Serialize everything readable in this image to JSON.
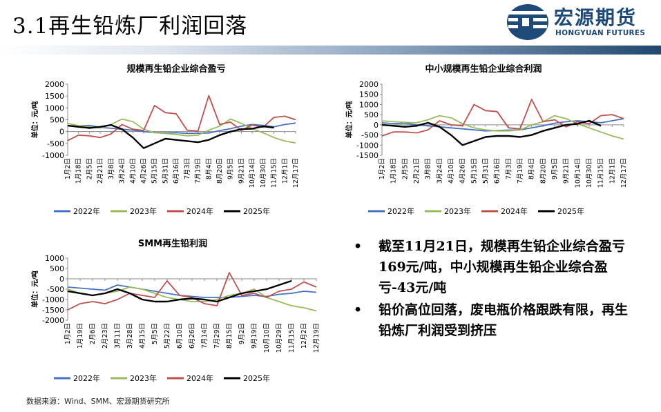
{
  "page": {
    "title": "3.1再生铅炼厂利润回落",
    "logo_name": "宏源期货",
    "logo_sub": "HONGYUAN FUTURES",
    "source": "数据来源：Wind、SMM、宏源期货研究所",
    "bullets": [
      "截至11月21日，规模再生铅企业综合盈亏169元/吨，中小规模再生铅企业综合盈亏-43元/吨",
      "铅价高位回落，废电瓶价格跟跌有限，再生铅炼厂利润受到挤压"
    ],
    "colors": {
      "s2022": "#4472c4",
      "s2023": "#9bbb59",
      "s2024": "#c0504d",
      "s2025": "#000000",
      "brand": "#1e4a7a"
    }
  },
  "chart_data": [
    {
      "type": "line",
      "title": "规模再生铅企业综合盈亏",
      "ylabel": "单位：元/吨",
      "ylim": [
        -1000,
        2000
      ],
      "yticks": [
        -1000,
        -500,
        0,
        500,
        1000,
        1500,
        2000
      ],
      "categories": [
        "1月2日",
        "1月18日",
        "2月5日",
        "2月21日",
        "3月8日",
        "3月24日",
        "4月10日",
        "4月26日",
        "5月15日",
        "5月31日",
        "6月16日",
        "7月3日",
        "7月19日",
        "8月4日",
        "8月20日",
        "9月5日",
        "9月21日",
        "10月14日",
        "10月30日",
        "11月15日",
        "12月1日",
        "12月17日"
      ],
      "series": [
        {
          "name": "2022年",
          "values": [
            250,
            240,
            260,
            180,
            140,
            100,
            60,
            0,
            -40,
            -60,
            -50,
            -80,
            -70,
            -60,
            40,
            120,
            230,
            300,
            260,
            200,
            300,
            360
          ]
        },
        {
          "name": "2023年",
          "values": [
            350,
            250,
            200,
            150,
            300,
            530,
            420,
            100,
            -50,
            -80,
            -120,
            -180,
            -150,
            60,
            230,
            530,
            350,
            120,
            -50,
            -250,
            -400,
            -480
          ]
        },
        {
          "name": "2024年",
          "values": [
            -380,
            -150,
            -180,
            -250,
            -100,
            300,
            100,
            50,
            1100,
            800,
            750,
            60,
            20,
            1520,
            300,
            400,
            50,
            280,
            180,
            600,
            650,
            500
          ]
        },
        {
          "name": "2025年",
          "values": [
            250,
            200,
            150,
            200,
            280,
            100,
            -250,
            -700,
            -500,
            -300,
            -350,
            -400,
            -450,
            -350,
            -150,
            0,
            100,
            120,
            220,
            169,
            null,
            null
          ]
        }
      ]
    },
    {
      "type": "line",
      "title": "中小规模再生铅企业综合利润",
      "ylabel": "单位：元/吨",
      "ylim": [
        -1500,
        2000
      ],
      "yticks": [
        -1500,
        -1000,
        -500,
        0,
        500,
        1000,
        1500,
        2000
      ],
      "categories": [
        "1月2日",
        "1月18日",
        "2月5日",
        "2月21日",
        "3月8日",
        "3月24日",
        "4月10日",
        "4月26日",
        "5月15日",
        "5月31日",
        "6月16日",
        "7月3日",
        "7月19日",
        "8月4日",
        "8月20日",
        "9月5日",
        "9月21日",
        "10月14日",
        "10月30日",
        "11月15日",
        "12月1日",
        "12月17日"
      ],
      "series": [
        {
          "name": "2022年",
          "values": [
            100,
            60,
            80,
            0,
            -50,
            -100,
            -150,
            -200,
            -250,
            -300,
            -280,
            -260,
            -250,
            -150,
            -50,
            80,
            150,
            200,
            150,
            100,
            200,
            300
          ]
        },
        {
          "name": "2023年",
          "values": [
            200,
            150,
            120,
            100,
            250,
            450,
            350,
            50,
            -150,
            -250,
            -300,
            -300,
            -250,
            0,
            150,
            450,
            300,
            50,
            -150,
            -350,
            -550,
            -700
          ]
        },
        {
          "name": "2024年",
          "values": [
            -550,
            -350,
            -350,
            -400,
            -250,
            200,
            0,
            -50,
            1000,
            700,
            650,
            -150,
            -200,
            1250,
            150,
            250,
            -100,
            150,
            50,
            450,
            500,
            300
          ]
        },
        {
          "name": "2025年",
          "values": [
            0,
            -50,
            -100,
            -50,
            100,
            -100,
            -500,
            -1000,
            -800,
            -600,
            -550,
            -550,
            -600,
            -500,
            -300,
            -150,
            0,
            50,
            200,
            -43,
            null,
            null
          ]
        }
      ]
    },
    {
      "type": "line",
      "title": "SMM再生铅利润",
      "ylabel": "单位：元/吨",
      "ylim": [
        -2000,
        1000
      ],
      "yticks": [
        -2000,
        -1500,
        -1000,
        -500,
        0,
        500,
        1000
      ],
      "categories": [
        "1月2日",
        "1月19日",
        "2月6日",
        "2月23日",
        "3月11日",
        "3月28日",
        "4月15日",
        "5月5日",
        "5月22日",
        "6月10日",
        "6月26日",
        "7月14日",
        "7月29日",
        "8月15日",
        "9月2日",
        "9月19日",
        "10月10日",
        "10月29日",
        "11月15日",
        "12月2日",
        "12月19日"
      ],
      "series": [
        {
          "name": "2022年",
          "values": [
            -400,
            -450,
            -500,
            -550,
            -300,
            -400,
            -500,
            -600,
            -700,
            -800,
            -850,
            -900,
            -900,
            -900,
            -850,
            -800,
            -850,
            -750,
            -700,
            -600,
            -650
          ]
        },
        {
          "name": "2023年",
          "values": [
            -500,
            -700,
            -800,
            -700,
            -600,
            -400,
            -500,
            -700,
            -900,
            -1000,
            -1100,
            -1100,
            -1000,
            -800,
            -700,
            -500,
            -900,
            -1100,
            -1300,
            -1400,
            -1550
          ]
        },
        {
          "name": "2024年",
          "values": [
            -1500,
            -1200,
            -1100,
            -1200,
            -1000,
            -700,
            -800,
            -900,
            -100,
            -800,
            -900,
            -1200,
            -1300,
            300,
            -800,
            -700,
            -900,
            -600,
            -500,
            -150,
            -400
          ]
        },
        {
          "name": "2025年",
          "values": [
            -600,
            -700,
            -800,
            -700,
            -500,
            -700,
            -1000,
            -1100,
            -1100,
            -1000,
            -950,
            -1000,
            -1100,
            -900,
            -700,
            -600,
            -500,
            -300,
            -100,
            null,
            null
          ]
        }
      ]
    }
  ]
}
